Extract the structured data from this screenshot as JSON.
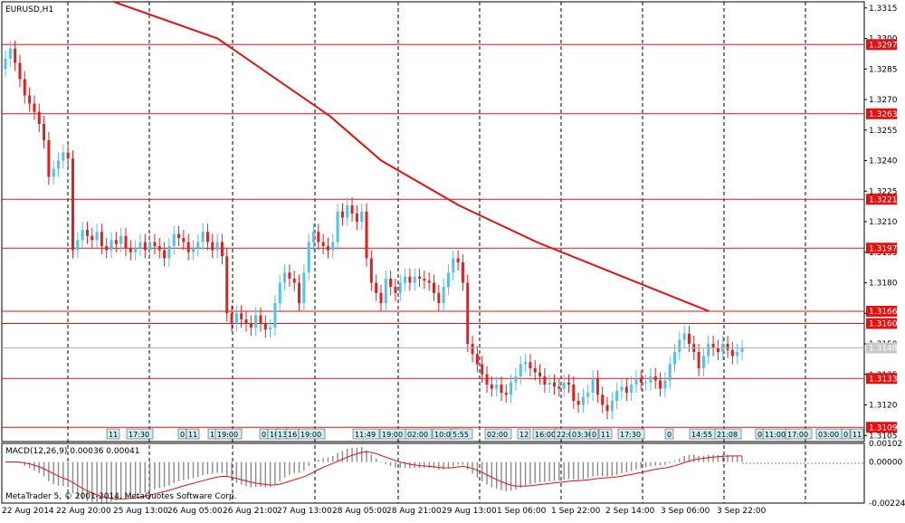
{
  "symbol_label": "EURUSD,H1",
  "copyright": "MetaTrader 5, © 2001-2014, MetaQuotes Software Corp.",
  "macd_label": "MACD(12,26,9) 0.00036 0.00041",
  "price_axis": [
    "1.3315",
    "1.3300",
    "1.3285",
    "1.3270",
    "1.3255",
    "1.3240",
    "1.3225",
    "1.3210",
    "1.3195",
    "1.3180",
    "1.3165",
    "1.3150",
    "1.3135",
    "1.3120",
    "1.3105"
  ],
  "macd_axis": [
    "0.00102",
    "0.00000",
    "-0.00224"
  ],
  "current_price": "1.3148",
  "time_axis": [
    "22 Aug 2014",
    "22 Aug 20:00",
    "25 Aug 13:00",
    "26 Aug 05:00",
    "26 Aug 21:00",
    "27 Aug 13:00",
    "28 Aug 05:00",
    "28 Aug 21:00",
    "29 Aug 13:00",
    "1 Sep 06:00",
    "1 Sep 22:00",
    "2 Sep 14:00",
    "3 Sep 06:00",
    "3 Sep 22:00"
  ],
  "levels": [
    {
      "price": 1.3297,
      "label": "1.3297"
    },
    {
      "price": 1.3263,
      "label": "1.3263"
    },
    {
      "price": 1.3221,
      "label": "1.3221"
    },
    {
      "price": 1.3197,
      "label": "1.3197"
    },
    {
      "price": 1.3166,
      "label": "1.3166"
    },
    {
      "price": 1.316,
      "label": "1.3160"
    },
    {
      "price": 1.3133,
      "label": "1.3133"
    },
    {
      "price": 1.3109,
      "label": "1.3109"
    }
  ],
  "session_tags": [
    "11",
    "17:30",
    "0",
    "11",
    "1",
    "19:00",
    "0",
    "10",
    "13",
    "16",
    "19:00",
    "11:49",
    "19:00",
    "02:00",
    "10:00",
    "5:55",
    "02:00",
    "12",
    "16:00",
    "22:0",
    "03:30",
    "0",
    "11",
    "17:30",
    "0",
    "14:55",
    "21:08",
    "0",
    "11:00",
    "17:00",
    "03:00",
    "0",
    "11"
  ],
  "colors": {
    "bull": "#4fc3e8",
    "bear": "#e02020",
    "level": "#e51010",
    "ma": "#e51010",
    "grid": "#000000",
    "tag_fill": "#cdeef3"
  },
  "chart_data": {
    "type": "candlestick",
    "y_range": [
      1.3102,
      1.3318
    ],
    "open": [
      1.3285,
      1.329,
      1.3295,
      1.3288,
      1.328,
      1.3272,
      1.3268,
      1.3264,
      1.3258,
      1.325,
      1.3232,
      1.3236,
      1.324,
      1.3244,
      1.3241,
      1.3196,
      1.3201,
      1.3206,
      1.3203,
      1.3201,
      1.3205,
      1.3198,
      1.3196,
      1.3201,
      1.3199,
      1.3203,
      1.3197,
      1.3195,
      1.3197,
      1.32,
      1.3196,
      1.32,
      1.3198,
      1.3196,
      1.3192,
      1.3198,
      1.3204,
      1.3202,
      1.32,
      1.3195,
      1.3197,
      1.32,
      1.3205,
      1.32,
      1.3196,
      1.32,
      1.3193,
      1.3165,
      1.316,
      1.3165,
      1.3162,
      1.316,
      1.3158,
      1.3164,
      1.316,
      1.3157,
      1.3158,
      1.317,
      1.318,
      1.3185,
      1.3182,
      1.318,
      1.317,
      1.3185,
      1.32,
      1.3205,
      1.32,
      1.3198,
      1.3196,
      1.32,
      1.3215,
      1.3212,
      1.3218,
      1.3214,
      1.321,
      1.3215,
      1.3192,
      1.318,
      1.3175,
      1.317,
      1.3182,
      1.3178,
      1.3175,
      1.318,
      1.3183,
      1.318,
      1.3183,
      1.3182,
      1.3181,
      1.318,
      1.3175,
      1.317,
      1.3178,
      1.3185,
      1.3192,
      1.319,
      1.318,
      1.315,
      1.3145,
      1.314,
      1.3135,
      1.313,
      1.3128,
      1.313,
      1.3126,
      1.3125,
      1.3131,
      1.3134,
      1.314,
      1.3141,
      1.3138,
      1.3136,
      1.3134,
      1.313,
      1.3131,
      1.3129,
      1.3128,
      1.3131,
      1.313,
      1.3122,
      1.312,
      1.3124,
      1.3126,
      1.3133,
      1.3125,
      1.312,
      1.3117,
      1.3122,
      1.3127,
      1.3129,
      1.3126,
      1.313,
      1.3133,
      1.3131,
      1.3131,
      1.3134,
      1.3132,
      1.3128,
      1.3132,
      1.314,
      1.3146,
      1.3152,
      1.3155,
      1.315,
      1.3146,
      1.3138,
      1.3144,
      1.315,
      1.3148,
      1.3146,
      1.315,
      1.3147,
      1.3144,
      1.3146
    ],
    "close": [
      1.329,
      1.3295,
      1.3288,
      1.328,
      1.3272,
      1.3268,
      1.3264,
      1.3258,
      1.325,
      1.3232,
      1.3236,
      1.324,
      1.3244,
      1.3241,
      1.3196,
      1.3201,
      1.3206,
      1.3203,
      1.3201,
      1.3205,
      1.3198,
      1.3196,
      1.3201,
      1.3199,
      1.3203,
      1.3197,
      1.3195,
      1.3197,
      1.32,
      1.3196,
      1.32,
      1.3198,
      1.3196,
      1.3192,
      1.3198,
      1.3204,
      1.3202,
      1.32,
      1.3195,
      1.3197,
      1.32,
      1.3205,
      1.32,
      1.3196,
      1.32,
      1.3193,
      1.3165,
      1.316,
      1.3165,
      1.3162,
      1.316,
      1.3158,
      1.3164,
      1.316,
      1.3157,
      1.3158,
      1.317,
      1.318,
      1.3185,
      1.3182,
      1.318,
      1.317,
      1.3185,
      1.32,
      1.3205,
      1.32,
      1.3198,
      1.3196,
      1.32,
      1.3215,
      1.3212,
      1.3218,
      1.3214,
      1.321,
      1.3215,
      1.3192,
      1.318,
      1.3175,
      1.317,
      1.3182,
      1.3178,
      1.3175,
      1.318,
      1.3183,
      1.318,
      1.3183,
      1.3182,
      1.3181,
      1.318,
      1.3175,
      1.317,
      1.3178,
      1.3185,
      1.3192,
      1.319,
      1.318,
      1.315,
      1.3145,
      1.314,
      1.3135,
      1.313,
      1.3128,
      1.313,
      1.3126,
      1.3125,
      1.3131,
      1.3134,
      1.314,
      1.3141,
      1.3138,
      1.3136,
      1.3134,
      1.313,
      1.3131,
      1.3129,
      1.3128,
      1.3131,
      1.313,
      1.3122,
      1.312,
      1.3124,
      1.3126,
      1.3133,
      1.3125,
      1.312,
      1.3117,
      1.3122,
      1.3127,
      1.3129,
      1.3126,
      1.313,
      1.3133,
      1.3131,
      1.3131,
      1.3134,
      1.3132,
      1.3128,
      1.3132,
      1.314,
      1.3146,
      1.3152,
      1.3155,
      1.315,
      1.3146,
      1.3138,
      1.3144,
      1.315,
      1.3148,
      1.3146,
      1.315,
      1.3147,
      1.3144,
      1.3146,
      1.3148
    ],
    "ma_line": [
      [
        0.13,
        1.3318
      ],
      [
        0.25,
        1.33
      ],
      [
        0.38,
        1.3262
      ],
      [
        0.44,
        1.324
      ],
      [
        0.53,
        1.3218
      ],
      [
        0.62,
        1.32
      ],
      [
        0.72,
        1.3183
      ],
      [
        0.82,
        1.3166
      ]
    ],
    "macd_range": [
      -0.00224,
      0.00102
    ]
  }
}
